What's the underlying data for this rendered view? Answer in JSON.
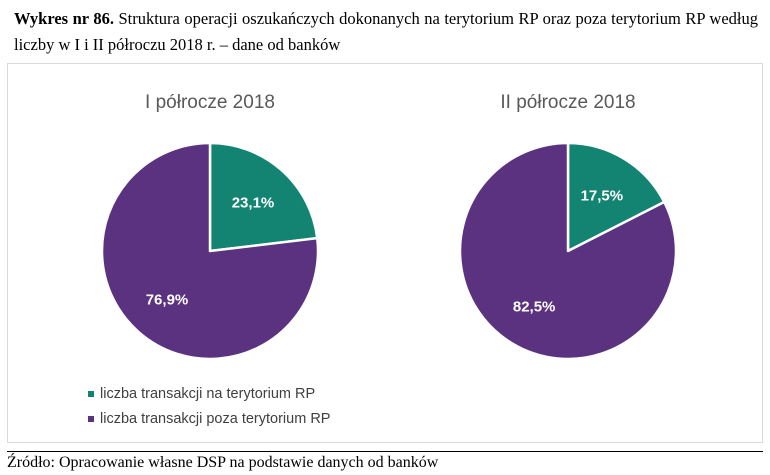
{
  "caption": {
    "lead": "Wykres nr 86.",
    "text": "Struktura operacji oszukańczych dokonanych na terytorium RP oraz poza terytorium RP według liczby w I i II półroczu 2018 r. – dane od banków"
  },
  "colors": {
    "teal": "#138471",
    "purple": "#5b3280"
  },
  "chart_data": [
    {
      "type": "pie",
      "title": "I półrocze 2018",
      "categories": [
        "liczba transakcji na terytorium RP",
        "liczba transakcji poza terytorium RP"
      ],
      "values": [
        23.1,
        76.9
      ],
      "labels": [
        "23,1%",
        "76,9%"
      ],
      "legend": "bottom-left"
    },
    {
      "type": "pie",
      "title": "II półrocze 2018",
      "categories": [
        "liczba transakcji na terytorium RP",
        "liczba transakcji poza terytorium RP"
      ],
      "values": [
        17.5,
        82.5
      ],
      "labels": [
        "17,5%",
        "82,5%"
      ],
      "legend": "bottom-left"
    }
  ],
  "legend": {
    "items": [
      "liczba transakcji na terytorium RP",
      "liczba transakcji poza terytorium RP"
    ]
  },
  "source": "Źródło: Opracowanie własne DSP na podstawie danych od banków"
}
